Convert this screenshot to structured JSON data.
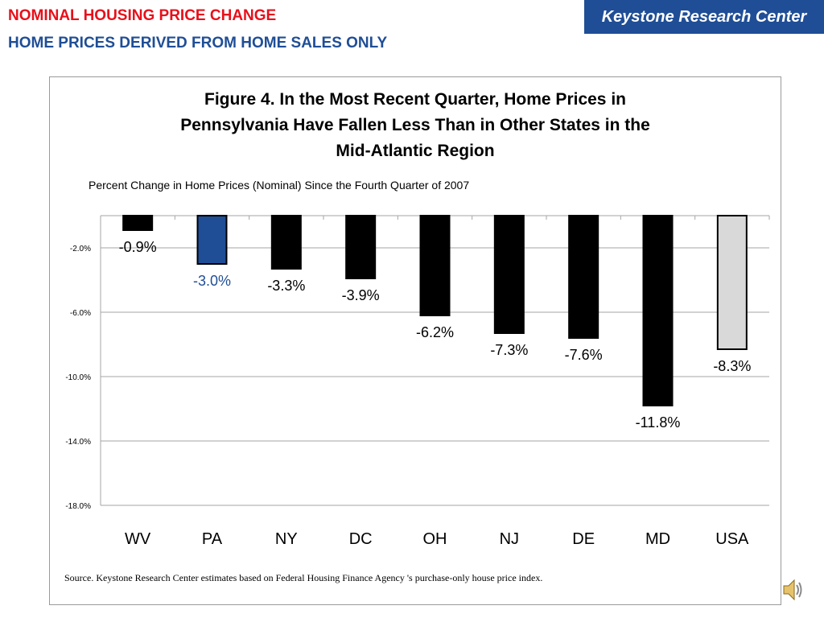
{
  "header": {
    "title_line1": "NOMINAL HOUSING PRICE CHANGE",
    "title_line2": "HOME PRICES DERIVED FROM HOME SALES ONLY",
    "organization": "Keystone Research Center"
  },
  "icons": {
    "speaker": "speaker-icon"
  },
  "chart_data": {
    "type": "bar",
    "title": "Figure 4. In the Most Recent Quarter, Home Prices in Pennsylvania Have Fallen Less Than in Other States in the Mid-Atlantic Region",
    "title_lines": [
      "Figure 4. In the Most Recent Quarter, Home Prices in",
      "Pennsylvania Have Fallen Less Than in Other States in the",
      "Mid-Atlantic Region"
    ],
    "subtitle": "Percent Change in Home Prices (Nominal) Since the Fourth Quarter of 2007",
    "source": "Source. Keystone Research Center estimates based on Federal Housing Finance Agency 's purchase-only house price index.",
    "categories": [
      "WV",
      "PA",
      "NY",
      "DC",
      "OH",
      "NJ",
      "DE",
      "MD",
      "USA"
    ],
    "values": [
      -0.9,
      -3.0,
      -3.3,
      -3.9,
      -6.2,
      -7.3,
      -7.6,
      -11.8,
      -8.3
    ],
    "data_labels": [
      "-0.9%",
      "-3.0%",
      "-3.3%",
      "-3.9%",
      "-6.2%",
      "-7.3%",
      "-7.6%",
      "-11.8%",
      "-8.3%"
    ],
    "bar_colors": [
      "#000000",
      "#1f4e96",
      "#000000",
      "#000000",
      "#000000",
      "#000000",
      "#000000",
      "#000000",
      "#d9d9d9"
    ],
    "label_colors": [
      "#000000",
      "#1f4e96",
      "#000000",
      "#000000",
      "#000000",
      "#000000",
      "#000000",
      "#000000",
      "#000000"
    ],
    "yticks": [
      -2,
      -6,
      -10,
      -14,
      -18
    ],
    "ytick_labels": [
      "-2.0%",
      "-6.0%",
      "-10.0%",
      "-14.0%",
      "-18.0%"
    ],
    "ylim": [
      -18,
      0
    ],
    "grid": true,
    "legend": "none"
  }
}
